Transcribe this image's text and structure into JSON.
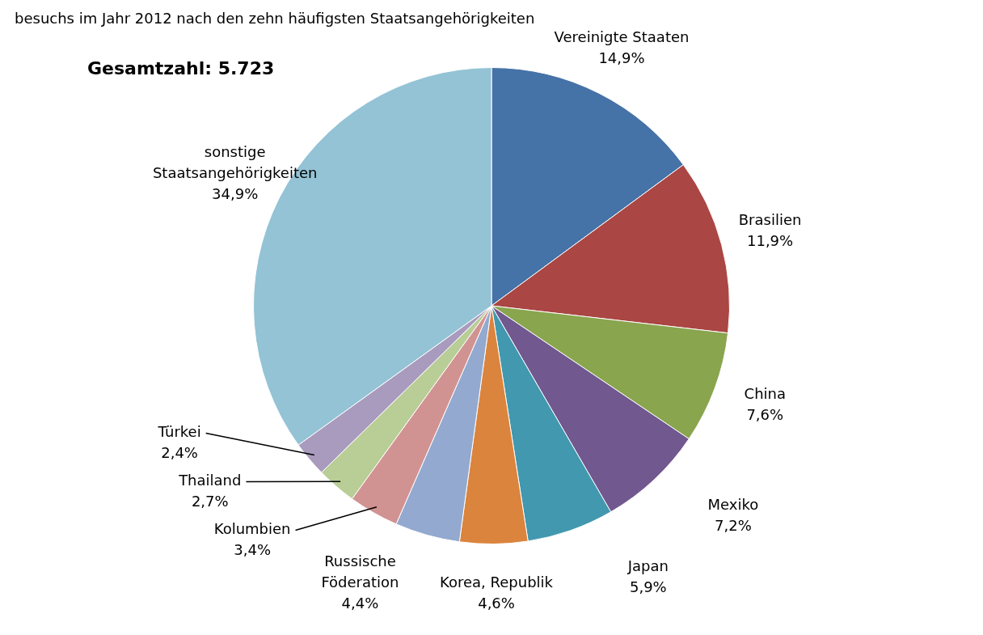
{
  "chart_data": {
    "type": "pie",
    "title": "besuchs im Jahr 2012 nach den zehn häufigsten Staatsangehörigkeiten",
    "annotations": [
      "Gesamtzahl: 5.723"
    ],
    "categories": [
      "Vereinigte Staaten",
      "Brasilien",
      "China",
      "Mexiko",
      "Japan",
      "Korea, Republik",
      "Russische Föderation",
      "Kolumbien",
      "Thailand",
      "Türkei",
      "sonstige Staatsangehörigkeiten"
    ],
    "values": [
      14.9,
      11.9,
      7.6,
      7.2,
      5.9,
      4.6,
      4.4,
      3.4,
      2.7,
      2.4,
      34.9
    ],
    "value_labels": [
      "14,9%",
      "11,9%",
      "7,6%",
      "7,2%",
      "5,9%",
      "4,6%",
      "4,4%",
      "3,4%",
      "2,7%",
      "2,4%",
      "34,9%"
    ],
    "colors": [
      "#4572a7",
      "#aa4643",
      "#89a54e",
      "#71588f",
      "#4198af",
      "#db843d",
      "#93a9cf",
      "#d19392",
      "#b9cd96",
      "#a99bbd",
      "#93c3d5"
    ]
  }
}
